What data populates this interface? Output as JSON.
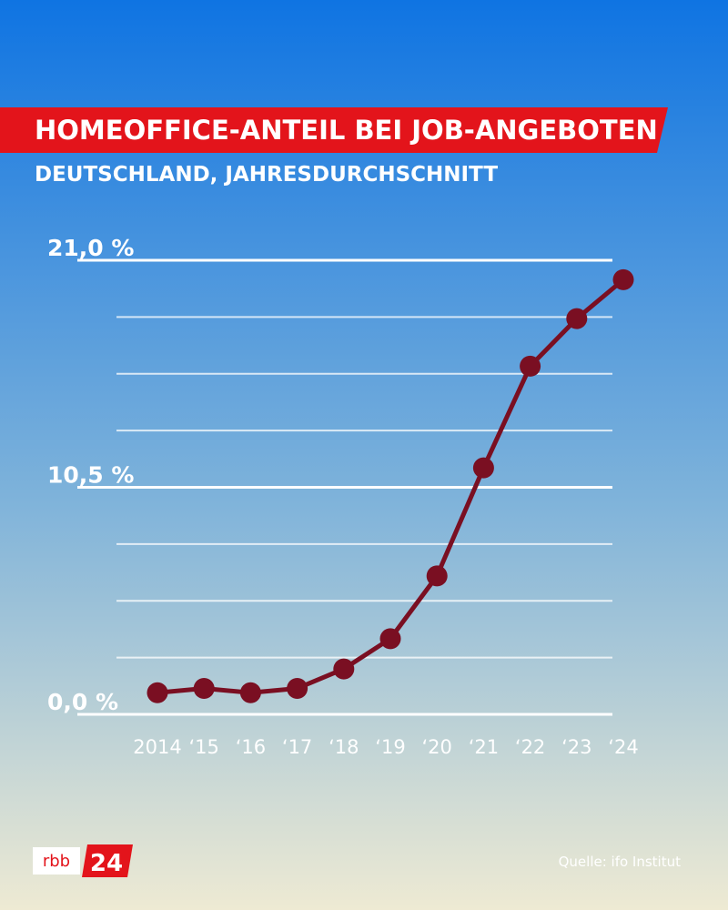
{
  "chart_data": {
    "type": "line",
    "title": "HOMEOFFICE-ANTEIL BEI JOB-ANGEBOTEN",
    "subtitle": "DEUTSCHLAND, JAHRESDURCHSCHNITT",
    "categories": [
      "2014",
      "‘15",
      "‘16",
      "‘17",
      "‘18",
      "‘19",
      "‘20",
      "‘21",
      "‘22",
      "‘23",
      "‘24"
    ],
    "series": [
      {
        "name": "Homeoffice-Anteil",
        "color": "#7a0f22",
        "values": [
          1.0,
          1.2,
          1.0,
          1.2,
          2.1,
          3.5,
          6.4,
          11.4,
          16.1,
          18.3,
          20.1
        ]
      }
    ],
    "ylim": [
      0,
      21
    ],
    "yticks": [
      {
        "value": 0,
        "label": "0,0 %"
      },
      {
        "value": 10.5,
        "label": "10,5 %"
      },
      {
        "value": 21,
        "label": "21,0 %"
      }
    ],
    "minor_yticks": [
      2.625,
      5.25,
      7.875,
      13.125,
      15.75,
      18.375
    ],
    "grid": true,
    "source": "Quelle: ifo Institut"
  },
  "logo": {
    "left": "rbb",
    "right": "24"
  }
}
